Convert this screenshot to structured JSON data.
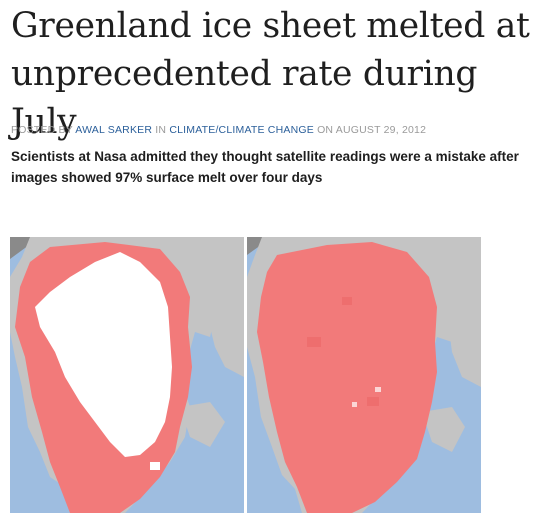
{
  "article": {
    "title": "Greenland ice sheet melted at unprecedented rate during July",
    "meta": {
      "posted_by_prefix": "POSTED BY",
      "author": "AWAL SARKER",
      "in_prefix": "IN",
      "category": "CLIMATE/CLIMATE CHANGE",
      "on_prefix": "ON",
      "date": "AUGUST 29, 2012"
    },
    "standfirst": "Scientists at Nasa admitted they thought satellite readings were a mistake after images showed 97% surface melt over four days"
  },
  "colors": {
    "ocean": "#9ebde0",
    "land": "#c4c4c4",
    "melt": "#f27a7a",
    "ice": "#ffffff",
    "corner": "#8a8a8a",
    "link": "#2b5f9a"
  }
}
